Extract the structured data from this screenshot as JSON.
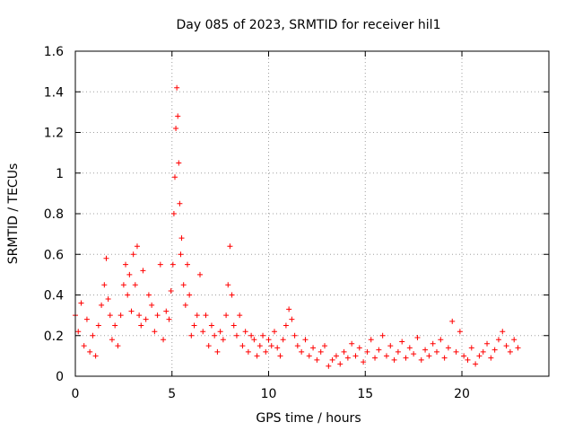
{
  "chart_data": {
    "type": "scatter",
    "title": "Day 085 of 2023, SRMTID for receiver hil1",
    "xlabel": "GPS time / hours",
    "ylabel": "SRMTID / TECUs",
    "xlim": [
      0,
      24.5
    ],
    "ylim": [
      0,
      1.6
    ],
    "xticks": [
      0,
      5,
      10,
      15,
      20
    ],
    "yticks": [
      0,
      0.2,
      0.4,
      0.6,
      0.8,
      1,
      1.2,
      1.4,
      1.6
    ],
    "xtick_labels": [
      "0",
      "5",
      "10",
      "15",
      "20"
    ],
    "ytick_labels": [
      "0",
      "0.2",
      "0.4",
      "0.6",
      "0.8",
      "1",
      "1.2",
      "1.4",
      "1.6"
    ],
    "grid": true,
    "marker": "plus",
    "color": "#ff0000",
    "series": [
      {
        "name": "hil1",
        "x": [
          0.0,
          0.15,
          0.3,
          0.45,
          0.6,
          0.75,
          0.9,
          1.05,
          1.2,
          1.35,
          1.5,
          1.6,
          1.7,
          1.8,
          1.9,
          2.05,
          2.2,
          2.35,
          2.5,
          2.6,
          2.7,
          2.8,
          2.9,
          3.0,
          3.1,
          3.2,
          3.3,
          3.4,
          3.5,
          3.65,
          3.8,
          3.95,
          4.1,
          4.25,
          4.4,
          4.55,
          4.7,
          4.85,
          4.95,
          5.05,
          5.1,
          5.15,
          5.2,
          5.25,
          5.3,
          5.35,
          5.4,
          5.45,
          5.5,
          5.6,
          5.7,
          5.8,
          5.9,
          6.0,
          6.15,
          6.3,
          6.45,
          6.6,
          6.75,
          6.9,
          7.05,
          7.2,
          7.35,
          7.5,
          7.65,
          7.8,
          7.9,
          8.0,
          8.1,
          8.2,
          8.35,
          8.5,
          8.65,
          8.8,
          8.95,
          9.1,
          9.25,
          9.4,
          9.55,
          9.7,
          9.85,
          10.0,
          10.15,
          10.3,
          10.45,
          10.6,
          10.75,
          10.9,
          11.05,
          11.2,
          11.35,
          11.5,
          11.7,
          11.9,
          12.1,
          12.3,
          12.5,
          12.7,
          12.9,
          13.1,
          13.3,
          13.5,
          13.7,
          13.9,
          14.1,
          14.3,
          14.5,
          14.7,
          14.9,
          15.1,
          15.3,
          15.5,
          15.7,
          15.9,
          16.1,
          16.3,
          16.5,
          16.7,
          16.9,
          17.1,
          17.3,
          17.5,
          17.7,
          17.9,
          18.1,
          18.3,
          18.5,
          18.7,
          18.9,
          19.1,
          19.3,
          19.5,
          19.7,
          19.9,
          20.1,
          20.3,
          20.5,
          20.7,
          20.9,
          21.1,
          21.3,
          21.5,
          21.7,
          21.9,
          22.1,
          22.3,
          22.5,
          22.7,
          22.9
        ],
        "y": [
          0.3,
          0.22,
          0.36,
          0.15,
          0.28,
          0.12,
          0.2,
          0.1,
          0.25,
          0.35,
          0.45,
          0.58,
          0.38,
          0.3,
          0.18,
          0.25,
          0.15,
          0.3,
          0.45,
          0.55,
          0.4,
          0.5,
          0.32,
          0.6,
          0.45,
          0.64,
          0.3,
          0.25,
          0.52,
          0.28,
          0.4,
          0.35,
          0.22,
          0.3,
          0.55,
          0.18,
          0.32,
          0.28,
          0.42,
          0.55,
          0.8,
          0.98,
          1.22,
          1.42,
          1.28,
          1.05,
          0.85,
          0.6,
          0.68,
          0.45,
          0.35,
          0.55,
          0.4,
          0.2,
          0.25,
          0.3,
          0.5,
          0.22,
          0.3,
          0.15,
          0.25,
          0.2,
          0.12,
          0.22,
          0.18,
          0.3,
          0.45,
          0.64,
          0.4,
          0.25,
          0.2,
          0.3,
          0.15,
          0.22,
          0.12,
          0.2,
          0.18,
          0.1,
          0.15,
          0.2,
          0.12,
          0.18,
          0.15,
          0.22,
          0.14,
          0.1,
          0.18,
          0.25,
          0.33,
          0.28,
          0.2,
          0.15,
          0.12,
          0.18,
          0.1,
          0.14,
          0.08,
          0.12,
          0.15,
          0.05,
          0.08,
          0.1,
          0.06,
          0.12,
          0.09,
          0.16,
          0.1,
          0.14,
          0.07,
          0.12,
          0.18,
          0.09,
          0.13,
          0.2,
          0.1,
          0.15,
          0.08,
          0.12,
          0.17,
          0.09,
          0.14,
          0.11,
          0.19,
          0.08,
          0.13,
          0.1,
          0.16,
          0.12,
          0.18,
          0.09,
          0.14,
          0.27,
          0.12,
          0.22,
          0.1,
          0.08,
          0.14,
          0.06,
          0.1,
          0.12,
          0.16,
          0.09,
          0.13,
          0.18,
          0.22,
          0.15,
          0.12,
          0.18,
          0.14
        ]
      }
    ]
  }
}
